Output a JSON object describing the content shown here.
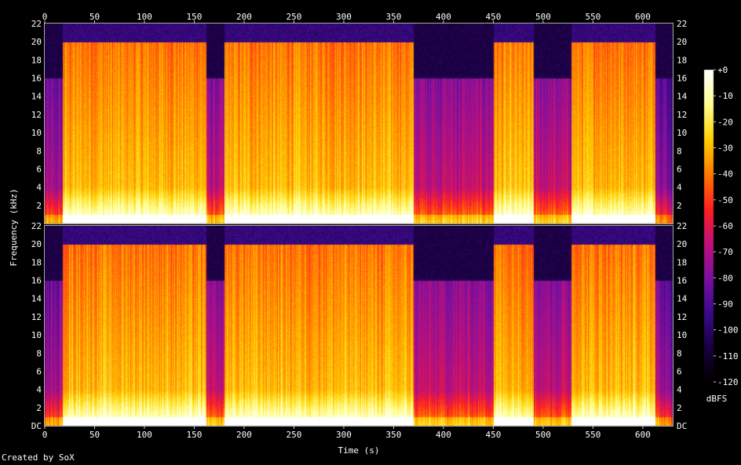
{
  "footer": {
    "credit": "Created by SoX"
  },
  "chart_data": {
    "type": "heatmap",
    "xlabel": "Time (s)",
    "ylabel": "Frequency (kHz)",
    "xlim": [
      0,
      630
    ],
    "ylim": [
      0,
      22
    ],
    "x_ticks": [
      "0",
      "50",
      "100",
      "150",
      "200",
      "250",
      "300",
      "350",
      "400",
      "450",
      "500",
      "550",
      "600"
    ],
    "y_ticks": [
      "2",
      "4",
      "6",
      "8",
      "10",
      "12",
      "14",
      "16",
      "18",
      "20",
      "22"
    ],
    "y_ticks_bottom_channel": [
      "DC",
      "2",
      "4",
      "6",
      "8",
      "10",
      "12",
      "14",
      "16",
      "18",
      "20",
      "22"
    ],
    "channels": 2,
    "colorbar": {
      "label": "dBFS",
      "ticks": [
        "+0",
        "-10",
        "-20",
        "-30",
        "-40",
        "-50",
        "-60",
        "-70",
        "-80",
        "-90",
        "-100",
        "-110",
        "-120"
      ],
      "range": [
        -120,
        0
      ]
    },
    "segments_s": [
      {
        "start": 0,
        "end": 18,
        "level": "quiet-intro"
      },
      {
        "start": 18,
        "end": 162,
        "level": "loud"
      },
      {
        "start": 162,
        "end": 180,
        "level": "break"
      },
      {
        "start": 180,
        "end": 370,
        "level": "loud"
      },
      {
        "start": 370,
        "end": 450,
        "level": "quiet"
      },
      {
        "start": 450,
        "end": 490,
        "level": "loud"
      },
      {
        "start": 490,
        "end": 528,
        "level": "quiet"
      },
      {
        "start": 528,
        "end": 612,
        "level": "loud"
      },
      {
        "start": 612,
        "end": 630,
        "level": "fade-out"
      }
    ],
    "palette": [
      "#000000",
      "#1a0040",
      "#3a0a8a",
      "#7a10a0",
      "#c0107a",
      "#ff2020",
      "#ff7a00",
      "#ffd000",
      "#ffff90",
      "#ffffff"
    ]
  }
}
